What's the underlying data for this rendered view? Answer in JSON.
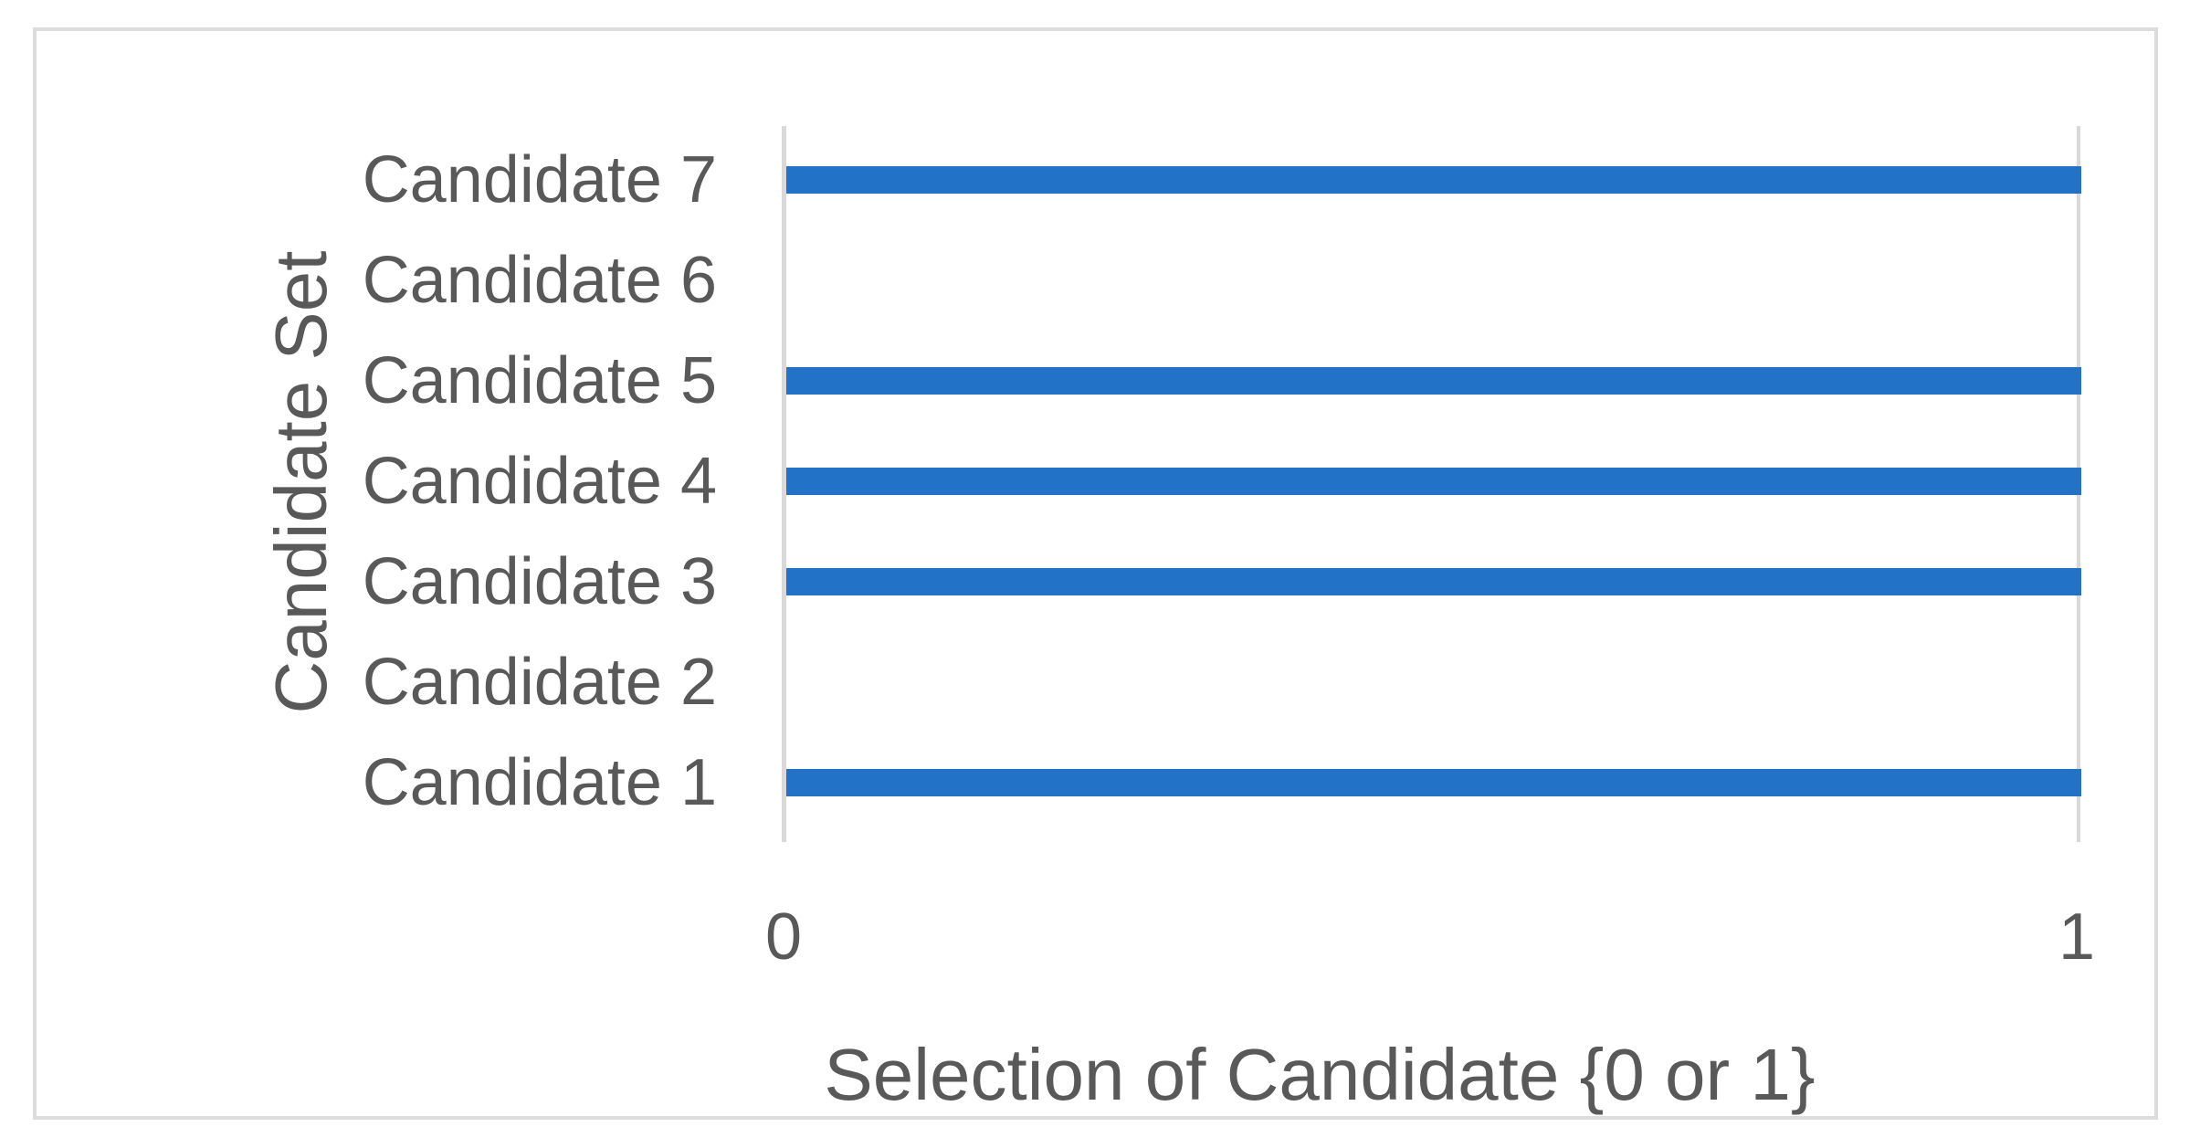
{
  "chart_data": {
    "type": "bar",
    "orientation": "horizontal",
    "title": "",
    "xlabel": "Selection of Candidate {0 or 1}",
    "ylabel": "Candidate Set",
    "categories_top_to_bottom": [
      "Candidate 7",
      "Candidate 6",
      "Candidate 5",
      "Candidate 4",
      "Candidate 3",
      "Candidate 2",
      "Candidate 1"
    ],
    "series": [
      {
        "name": "Selection of Candidate",
        "values_top_to_bottom": [
          1,
          0,
          1,
          1,
          1,
          0,
          1
        ]
      }
    ],
    "xlim": [
      0,
      1
    ],
    "xticks": [
      "0",
      "1"
    ],
    "grid": "single vertical gridline at x=1; no horizontal gridlines",
    "legend": "none"
  },
  "colors": {
    "bar": "#2273C7",
    "axis_line": "#D9D9D9",
    "frame_border": "#DCDCDC",
    "text": "#595959",
    "background": "#FFFFFF"
  }
}
